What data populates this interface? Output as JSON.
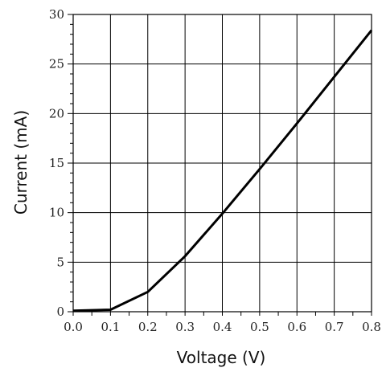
{
  "chart_data": {
    "type": "line",
    "title": "",
    "xlabel": "Voltage (V)",
    "ylabel": "Current (mA)",
    "xlim": [
      0,
      0.8
    ],
    "ylim": [
      0,
      30
    ],
    "x_ticks": [
      0.0,
      0.1,
      0.2,
      0.3,
      0.4,
      0.5,
      0.6,
      0.7,
      0.8
    ],
    "x_tick_labels": [
      "0.0",
      "0.1",
      "0.2",
      "0.3",
      "0.4",
      "0.5",
      "0.6",
      "0.7",
      "0.8"
    ],
    "y_ticks": [
      0,
      5,
      10,
      15,
      20,
      25,
      30
    ],
    "y_tick_labels": [
      "0",
      "5",
      "10",
      "15",
      "20",
      "25",
      "30"
    ],
    "grid": true,
    "series": [
      {
        "x": [
          0.0,
          0.05,
          0.1,
          0.2,
          0.3,
          0.4,
          0.5,
          0.6,
          0.7,
          0.8
        ],
        "y": [
          0.1,
          0.15,
          0.2,
          2.0,
          5.6,
          9.9,
          14.4,
          19.0,
          23.7,
          28.4
        ],
        "color": "#000000"
      }
    ]
  }
}
